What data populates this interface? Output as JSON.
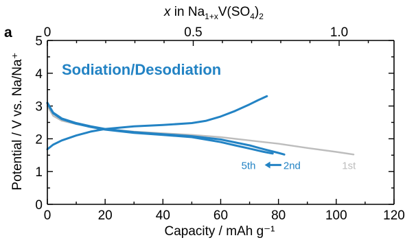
{
  "panel_label": "a",
  "chart_data": {
    "type": "line",
    "title": "Sodiation/Desodiation",
    "xlabel": "Capacity / mAh g⁻¹",
    "ylabel": "Potential / V vs. Na/Na⁺",
    "xlim": [
      0,
      120
    ],
    "ylim": [
      0,
      5
    ],
    "x_ticks": [
      "0",
      "20",
      "40",
      "60",
      "80",
      "100",
      "120"
    ],
    "y_ticks": [
      "0",
      "1",
      "2",
      "3",
      "4",
      "5"
    ],
    "top_axis": {
      "label_prefix": "x",
      "label_mid": " in Na",
      "label_sub": "1+x",
      "label_tail": "V(SO",
      "label_sub2": "4",
      "label_end": ")",
      "label_sub3": "2",
      "ticks": [
        {
          "label": "0",
          "x_capacity": 0
        },
        {
          "label": "0.5",
          "x_capacity": 50.5
        },
        {
          "label": "1.0",
          "x_capacity": 101
        }
      ]
    },
    "colors": {
      "blue": "#2383c4",
      "gray": "#bdbdbd",
      "axis": "#000000"
    },
    "series": [
      {
        "name": "1st",
        "role": "discharge",
        "color": "#bdbdbd",
        "x": [
          0,
          2,
          5,
          10,
          15,
          20,
          30,
          40,
          50,
          60,
          70,
          80,
          90,
          100,
          106
        ],
        "y": [
          3.0,
          2.7,
          2.55,
          2.45,
          2.38,
          2.3,
          2.22,
          2.17,
          2.12,
          2.05,
          1.95,
          1.85,
          1.72,
          1.6,
          1.52
        ]
      },
      {
        "name": "2nd",
        "role": "discharge",
        "color": "#2383c4",
        "x": [
          0,
          2,
          5,
          10,
          15,
          20,
          30,
          40,
          50,
          60,
          70,
          75,
          80,
          82
        ],
        "y": [
          3.1,
          2.8,
          2.62,
          2.48,
          2.38,
          2.3,
          2.2,
          2.14,
          2.08,
          1.98,
          1.8,
          1.68,
          1.57,
          1.52
        ]
      },
      {
        "name": "5th",
        "role": "discharge",
        "color": "#2383c4",
        "x": [
          0,
          2,
          5,
          10,
          15,
          20,
          30,
          40,
          50,
          60,
          65,
          70,
          75,
          78
        ],
        "y": [
          3.08,
          2.78,
          2.6,
          2.46,
          2.36,
          2.28,
          2.18,
          2.12,
          2.05,
          1.9,
          1.8,
          1.7,
          1.6,
          1.55
        ]
      },
      {
        "name": "charge",
        "role": "charge",
        "color": "#2383c4",
        "x": [
          0,
          2,
          5,
          10,
          15,
          20,
          30,
          40,
          50,
          55,
          60,
          65,
          70,
          73,
          76
        ],
        "y": [
          1.68,
          1.82,
          1.95,
          2.1,
          2.22,
          2.3,
          2.38,
          2.42,
          2.48,
          2.55,
          2.68,
          2.85,
          3.05,
          3.18,
          3.3
        ]
      }
    ],
    "annotations": {
      "fifth": "5th",
      "second": "2nd",
      "first": "1st",
      "arrow_from_capacity": 81,
      "arrow_to_capacity": 75,
      "arrow_potential": 1.2
    }
  }
}
